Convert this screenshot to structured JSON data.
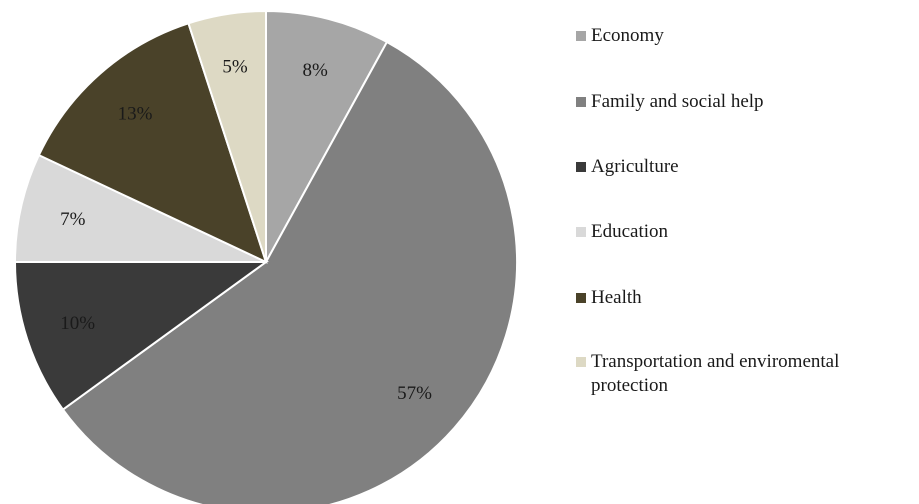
{
  "chart_data": {
    "type": "pie",
    "title": "",
    "start": "12 o'clock",
    "direction": "clockwise",
    "legend_position": "right",
    "slices": [
      {
        "label": "Economy",
        "value": 8,
        "value_label": "8%",
        "color": "#a6a6a6"
      },
      {
        "label": "Family and social help",
        "value": 57,
        "value_label": "57%",
        "color": "#808080"
      },
      {
        "label": "Agriculture",
        "value": 10,
        "value_label": "10%",
        "color": "#3a3a3a"
      },
      {
        "label": "Education",
        "value": 7,
        "value_label": "7%",
        "color": "#d9d9d9"
      },
      {
        "label": "Health",
        "value": 13,
        "value_label": "13%",
        "color": "#4a4229"
      },
      {
        "label": "Transportation and enviromental protection",
        "value": 5,
        "value_label": "5%",
        "color": "#ddd9c4"
      }
    ]
  }
}
